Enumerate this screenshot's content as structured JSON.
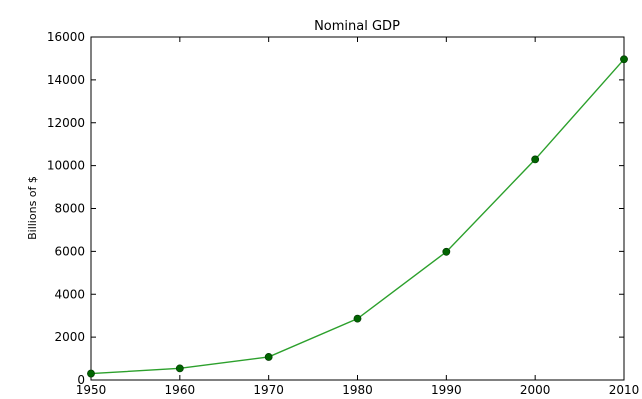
{
  "chart_data": {
    "type": "line",
    "title": "Nominal GDP",
    "xlabel": "",
    "ylabel": "Billions of $",
    "x": [
      1950,
      1960,
      1970,
      1980,
      1990,
      2000,
      2010
    ],
    "series": [
      {
        "values": [
          300,
          543,
          1075,
          2862,
          5980,
          10290,
          14960
        ]
      }
    ],
    "xlim": [
      1950,
      2010
    ],
    "ylim": [
      0,
      16000
    ],
    "xticks": [
      "1950",
      "1960",
      "1970",
      "1980",
      "1990",
      "2000",
      "2010"
    ],
    "yticks": [
      "0",
      "2000",
      "4000",
      "6000",
      "8000",
      "10000",
      "12000",
      "14000",
      "16000"
    ],
    "grid": false,
    "legend": "none",
    "colors": {
      "line": "#2ca02c",
      "marker": "#006400",
      "axes": "#000000"
    }
  }
}
